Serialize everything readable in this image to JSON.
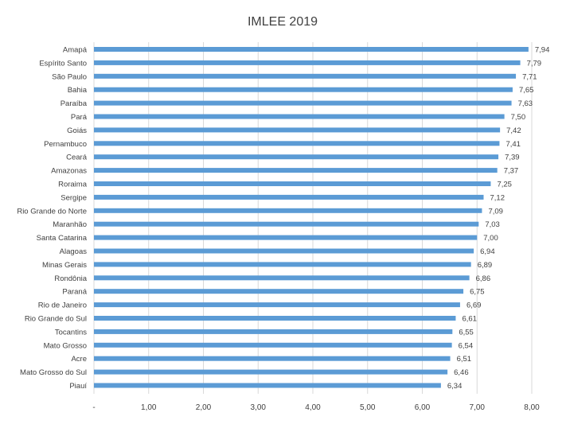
{
  "chart_data": {
    "type": "bar",
    "orientation": "horizontal",
    "title": "IMLEE 2019",
    "xlabel": "",
    "ylabel": "",
    "xlim": [
      0,
      8
    ],
    "grid": true,
    "legend": "none",
    "bar_color": "#5b9bd5",
    "categories": [
      "Amapá",
      "Espírito Santo",
      "São Paulo",
      "Bahia",
      "Paraíba",
      "Pará",
      "Goiás",
      "Pernambuco",
      "Ceará",
      "Amazonas",
      "Roraima",
      "Sergipe",
      "Rio Grande do Norte",
      "Maranhão",
      "Santa Catarina",
      "Alagoas",
      "Minas Gerais",
      "Rondônia",
      "Paraná",
      "Rio de Janeiro",
      "Rio Grande do Sul",
      "Tocantins",
      "Mato Grosso",
      "Acre",
      "Mato Grosso do Sul",
      "Piauí"
    ],
    "values": [
      7.94,
      7.79,
      7.71,
      7.65,
      7.63,
      7.5,
      7.42,
      7.41,
      7.39,
      7.37,
      7.25,
      7.12,
      7.09,
      7.03,
      7.0,
      6.94,
      6.89,
      6.86,
      6.75,
      6.69,
      6.61,
      6.55,
      6.54,
      6.51,
      6.46,
      6.34
    ],
    "value_labels": [
      "7,94",
      "7,79",
      "7,71",
      "7,65",
      "7,63",
      "7,50",
      "7,42",
      "7,41",
      "7,39",
      "7,37",
      "7,25",
      "7,12",
      "7,09",
      "7,03",
      "7,00",
      "6,94",
      "6,89",
      "6,86",
      "6,75",
      "6,69",
      "6,61",
      "6,55",
      "6,54",
      "6,51",
      "6,46",
      "6,34"
    ],
    "x_ticks": [
      0,
      1,
      2,
      3,
      4,
      5,
      6,
      7,
      8
    ],
    "x_tick_labels": [
      "-",
      "1,00",
      "2,00",
      "3,00",
      "4,00",
      "5,00",
      "6,00",
      "7,00",
      "8,00"
    ]
  }
}
